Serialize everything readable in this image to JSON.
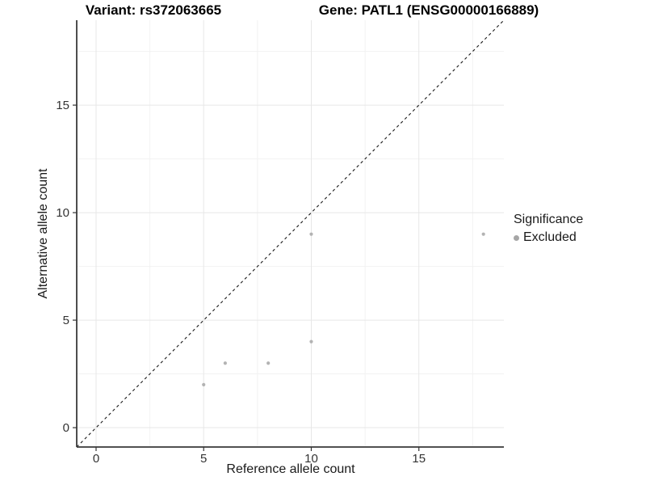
{
  "chart_data": {
    "type": "scatter",
    "titles": {
      "variant": "Variant: rs372063665",
      "gene": "Gene: PATL1 (ENSG00000166889)"
    },
    "xlabel": "Reference allele count",
    "ylabel": "Alternative allele count",
    "xlim": [
      -0.9,
      18.95
    ],
    "ylim": [
      -0.9,
      18.95
    ],
    "x_major_ticks": [
      0,
      5,
      10,
      15
    ],
    "y_major_ticks": [
      0,
      5,
      10,
      15
    ],
    "x_minor_ticks": [
      2.5,
      7.5,
      12.5,
      17.5
    ],
    "y_minor_ticks": [
      2.5,
      7.5,
      12.5,
      17.5
    ],
    "grid": true,
    "identity_line": {
      "style": "dashed",
      "from": [
        -0.9,
        -0.9
      ],
      "to": [
        18.95,
        18.95
      ],
      "color": "#1a1a1a"
    },
    "series": [
      {
        "name": "Excluded",
        "color": "#b3b3b3",
        "points": [
          [
            5,
            2
          ],
          [
            6,
            3
          ],
          [
            8,
            3
          ],
          [
            10,
            4
          ],
          [
            10,
            9
          ],
          [
            18,
            9
          ]
        ]
      }
    ],
    "legend": {
      "title": "Significance",
      "position": "right",
      "entries": [
        {
          "label": "Excluded",
          "color": "#a6a6a6"
        }
      ]
    },
    "colors": {
      "grid_major": "#e7e7e7",
      "grid_minor": "#f2f2f2",
      "axis_line": "#3a3a3a",
      "tick_mark": "#333333",
      "tick_label": "#333333"
    }
  }
}
